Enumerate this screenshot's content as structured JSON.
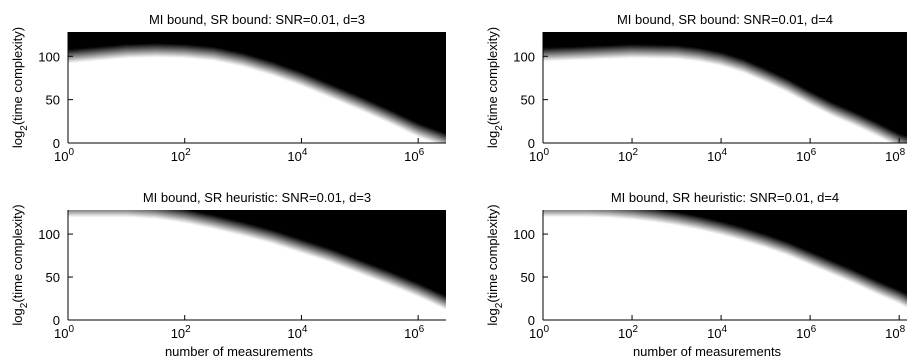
{
  "chart_data": [
    {
      "type": "heatmap",
      "title": "MI bound, SR bound: SNR=0.01, d=3",
      "xlabel": "",
      "ylabel": "log2(time complexity)",
      "ylabel_base": "log",
      "ylabel_sub": "2",
      "ylabel_rest": "(time complexity)",
      "x_scale": "log10",
      "xlim": [
        1,
        3000000
      ],
      "ylim": [
        0,
        128
      ],
      "x_ticks": [
        {
          "base": "10",
          "exp": "0",
          "value": 1
        },
        {
          "base": "10",
          "exp": "2",
          "value": 100
        },
        {
          "base": "10",
          "exp": "4",
          "value": 10000
        },
        {
          "base": "10",
          "exp": "6",
          "value": 1000000
        }
      ],
      "y_ticks": [
        0,
        50,
        100
      ],
      "boundary": {
        "log10_x": [
          0,
          0.5,
          1,
          1.5,
          2,
          2.5,
          3,
          3.5,
          4,
          4.5,
          5,
          5.5,
          6,
          6.48
        ],
        "y": [
          100,
          103,
          106,
          107,
          106,
          103,
          96,
          86,
          74,
          60,
          46,
          31,
          15,
          3
        ]
      },
      "blur": 0.35,
      "colors": {
        "feasible": "#ffffff",
        "infeasible": "#000000"
      }
    },
    {
      "type": "heatmap",
      "title": "MI bound, SR bound: SNR=0.01, d=4",
      "xlabel": "",
      "ylabel": "log2(time complexity)",
      "ylabel_base": "log",
      "ylabel_sub": "2",
      "ylabel_rest": "(time complexity)",
      "x_scale": "log10",
      "xlim": [
        1,
        150000000
      ],
      "ylim": [
        0,
        128
      ],
      "x_ticks": [
        {
          "base": "10",
          "exp": "0",
          "value": 1
        },
        {
          "base": "10",
          "exp": "2",
          "value": 100
        },
        {
          "base": "10",
          "exp": "4",
          "value": 10000
        },
        {
          "base": "10",
          "exp": "6",
          "value": 1000000
        },
        {
          "base": "10",
          "exp": "8",
          "value": 100000000
        }
      ],
      "y_ticks": [
        0,
        50,
        100
      ],
      "boundary": {
        "log10_x": [
          0,
          1,
          2,
          3,
          3.5,
          4,
          4.5,
          5,
          5.5,
          6,
          6.5,
          7,
          7.5,
          8,
          8.18
        ],
        "y": [
          102,
          104,
          106,
          105,
          102,
          97,
          89,
          78,
          66,
          52,
          39,
          28,
          16,
          3,
          0
        ]
      },
      "blur": 0.35,
      "colors": {
        "feasible": "#ffffff",
        "infeasible": "#000000"
      }
    },
    {
      "type": "heatmap",
      "title": "MI bound, SR heuristic: SNR=0.01, d=3",
      "xlabel": "number of measurements",
      "ylabel": "log2(time complexity)",
      "ylabel_base": "log",
      "ylabel_sub": "2",
      "ylabel_rest": "(time complexity)",
      "x_scale": "log10",
      "xlim": [
        1,
        3000000
      ],
      "ylim": [
        0,
        128
      ],
      "x_ticks": [
        {
          "base": "10",
          "exp": "0",
          "value": 1
        },
        {
          "base": "10",
          "exp": "2",
          "value": 100
        },
        {
          "base": "10",
          "exp": "4",
          "value": 10000
        },
        {
          "base": "10",
          "exp": "6",
          "value": 1000000
        }
      ],
      "y_ticks": [
        0,
        50,
        100
      ],
      "boundary": {
        "log10_x": [
          0,
          0.5,
          1,
          1.5,
          2,
          2.5,
          3,
          3.5,
          4,
          4.5,
          5,
          5.5,
          6,
          6.48
        ],
        "y": [
          128,
          128,
          128,
          126,
          121,
          114,
          106,
          97,
          86,
          75,
          62,
          49,
          35,
          20
        ]
      },
      "blur": 0.22,
      "colors": {
        "feasible": "#ffffff",
        "infeasible": "#000000"
      }
    },
    {
      "type": "heatmap",
      "title": "MI bound, SR heuristic: SNR=0.01, d=4",
      "xlabel": "number of measurements",
      "ylabel": "log2(time complexity)",
      "ylabel_base": "log",
      "ylabel_sub": "2",
      "ylabel_rest": "(time complexity)",
      "x_scale": "log10",
      "xlim": [
        1,
        150000000
      ],
      "ylim": [
        0,
        128
      ],
      "x_ticks": [
        {
          "base": "10",
          "exp": "0",
          "value": 1
        },
        {
          "base": "10",
          "exp": "2",
          "value": 100
        },
        {
          "base": "10",
          "exp": "4",
          "value": 10000
        },
        {
          "base": "10",
          "exp": "6",
          "value": 1000000
        },
        {
          "base": "10",
          "exp": "8",
          "value": 100000000
        }
      ],
      "y_ticks": [
        0,
        50,
        100
      ],
      "boundary": {
        "log10_x": [
          0,
          1,
          1.5,
          2,
          2.5,
          3,
          3.5,
          4,
          4.5,
          5,
          5.5,
          6,
          6.5,
          7,
          7.5,
          8,
          8.18
        ],
        "y": [
          128,
          128,
          127,
          125,
          122,
          118,
          113,
          107,
          100,
          92,
          83,
          72,
          61,
          50,
          38,
          27,
          22
        ]
      },
      "blur": 0.22,
      "colors": {
        "feasible": "#ffffff",
        "infeasible": "#000000"
      }
    }
  ]
}
